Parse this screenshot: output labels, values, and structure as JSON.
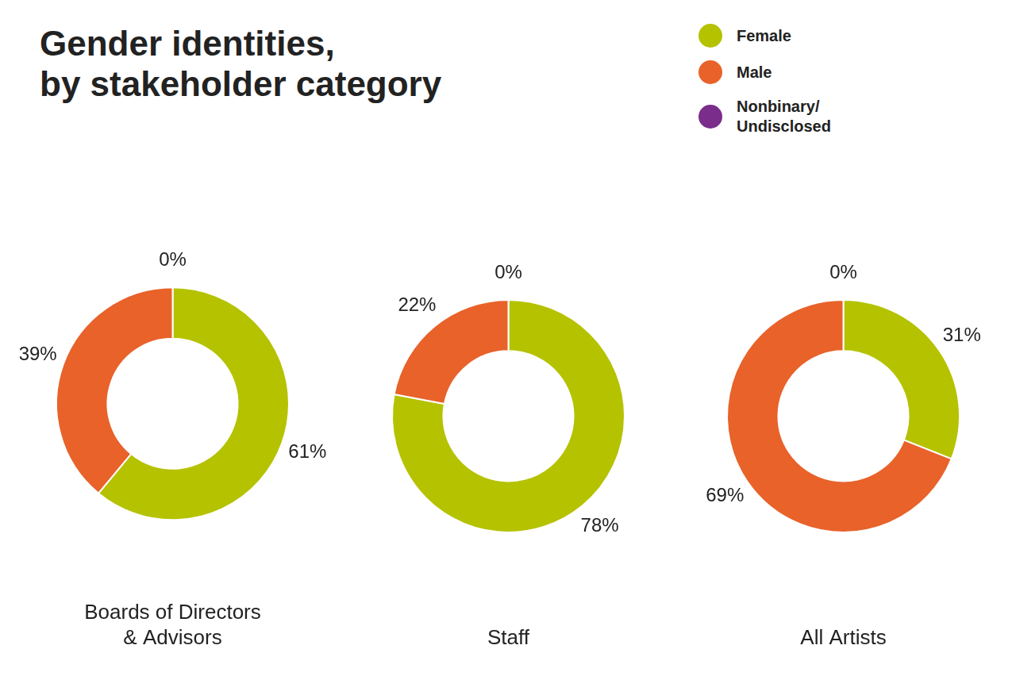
{
  "chart_data": {
    "type": "doughnut",
    "title": "Gender identities,\nby stakeholder category",
    "categories": [
      "Female",
      "Male",
      "Nonbinary/\nUndisclosed"
    ],
    "colors": [
      "#b5c200",
      "#e8622a",
      "#7b2d8b"
    ],
    "legend": "upper right",
    "data_labels": true,
    "series": [
      {
        "name": "Boards of Directors\n& Advisors",
        "values": [
          61,
          39,
          0
        ],
        "value_labels": [
          "61%",
          "39%",
          "0%"
        ]
      },
      {
        "name": "Staff",
        "values": [
          78,
          22,
          0
        ],
        "value_labels": [
          "78%",
          "22%",
          "0%"
        ]
      },
      {
        "name": "All Artists",
        "values": [
          31,
          69,
          0
        ],
        "value_labels": [
          "31%",
          "69%",
          "0%"
        ]
      }
    ]
  }
}
